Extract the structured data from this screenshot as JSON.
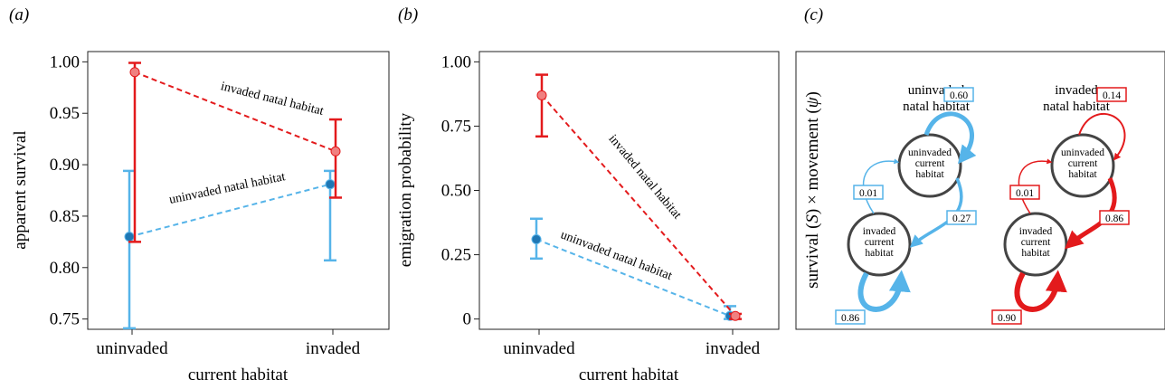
{
  "chart_data": [
    {
      "id": "a",
      "panel_label": "(a)",
      "type": "scatter",
      "xlabel": "current habitat",
      "ylabel": "apparent survival",
      "categories": [
        "uninvaded",
        "invaded"
      ],
      "ylim": [
        0.74,
        1.01
      ],
      "yticks": [
        0.75,
        0.8,
        0.85,
        0.9,
        0.95,
        1.0
      ],
      "ytick_labels": [
        "0.75",
        "0.80",
        "0.85",
        "0.90",
        "0.95",
        "1.00"
      ],
      "series": [
        {
          "name": "uninvaded natal habitat",
          "color": "#56b4e9",
          "point_color": "#1f77b4",
          "values": [
            0.83,
            0.881
          ],
          "lower": [
            0.741,
            0.807
          ],
          "upper": [
            0.894,
            0.894
          ]
        },
        {
          "name": "invaded natal habitat",
          "color": "#e31a1c",
          "point_color": "#f08080",
          "values": [
            0.99,
            0.913
          ],
          "lower": [
            0.825,
            0.868
          ],
          "upper": [
            0.999,
            0.944
          ]
        }
      ]
    },
    {
      "id": "b",
      "panel_label": "(b)",
      "type": "scatter",
      "xlabel": "current habitat",
      "ylabel": "emigration probability",
      "categories": [
        "uninvaded",
        "invaded"
      ],
      "ylim": [
        -0.04,
        1.04
      ],
      "yticks": [
        0,
        0.25,
        0.5,
        0.75,
        1.0
      ],
      "ytick_labels": [
        "0",
        "0.25",
        "0.50",
        "0.75",
        "1.00"
      ],
      "series": [
        {
          "name": "uninvaded natal habitat",
          "color": "#56b4e9",
          "point_color": "#1f77b4",
          "values": [
            0.31,
            0.012
          ],
          "lower": [
            0.235,
            0.0
          ],
          "upper": [
            0.39,
            0.05
          ]
        },
        {
          "name": "invaded natal habitat",
          "color": "#e31a1c",
          "point_color": "#f08080",
          "values": [
            0.87,
            0.012
          ],
          "lower": [
            0.71,
            0.0
          ],
          "upper": [
            0.95,
            0.02
          ]
        }
      ]
    },
    {
      "id": "c",
      "panel_label": "(c)",
      "type": "diagram",
      "ylabel": "survival (S) × movement (ψ)",
      "groups": [
        {
          "title_line1": "uninvaded",
          "title_line2": "natal habitat",
          "color": "#56b4e9",
          "node_top": [
            "uninvaded",
            "current",
            "habitat"
          ],
          "node_bottom": [
            "invaded",
            "current",
            "habitat"
          ],
          "self_top": "0.60",
          "top_to_bottom": "0.27",
          "bottom_to_top": "0.01",
          "self_bottom": "0.86"
        },
        {
          "title_line1": "invaded",
          "title_line2": "natal habitat",
          "color": "#e31a1c",
          "node_top": [
            "uninvaded",
            "current",
            "habitat"
          ],
          "node_bottom": [
            "invaded",
            "current",
            "habitat"
          ],
          "self_top": "0.14",
          "top_to_bottom": "0.86",
          "bottom_to_top": "0.01",
          "self_bottom": "0.90"
        }
      ]
    }
  ]
}
